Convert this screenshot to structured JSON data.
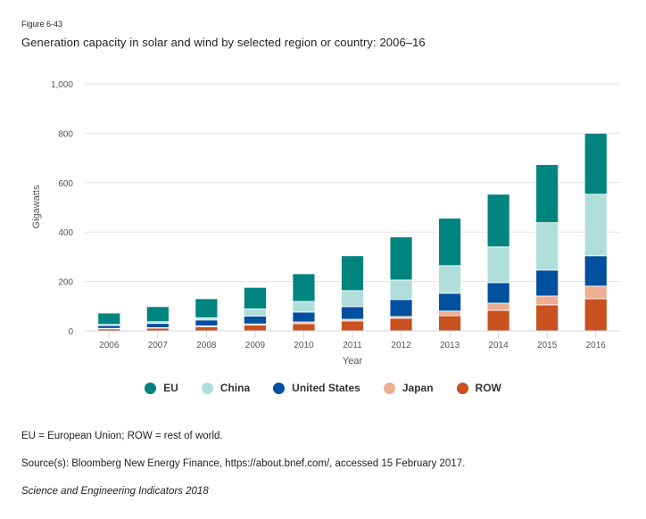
{
  "figure_label": "Figure 6-43",
  "title": "Generation capacity in solar and wind by selected region or country: 2006–16",
  "notes": {
    "abbreviations": "EU = European Union; ROW = rest of world.",
    "source": "Source(s): Bloomberg New Energy Finance, https://about.bnef.com/, accessed 15 February 2017.",
    "publication": "Science and Engineering Indicators 2018"
  },
  "chart_data": {
    "type": "bar",
    "stacked": true,
    "title": "Generation capacity in solar and wind by selected region or country: 2006–16",
    "xlabel": "Year",
    "ylabel": "Gigawatts",
    "ylim": [
      0,
      1000
    ],
    "yticks": [
      0,
      200,
      400,
      600,
      800,
      1000
    ],
    "ytick_labels": [
      "0",
      "200",
      "400",
      "600",
      "800",
      "1,000"
    ],
    "grid": true,
    "legend_position": "bottom",
    "categories": [
      "2006",
      "2007",
      "2008",
      "2009",
      "2010",
      "2011",
      "2012",
      "2013",
      "2014",
      "2015",
      "2016"
    ],
    "series": [
      {
        "name": "ROW",
        "color": "#c8511f",
        "values": [
          8,
          11,
          17,
          24,
          29,
          40,
          51,
          61,
          83,
          105,
          130
        ]
      },
      {
        "name": "Japan",
        "color": "#eeae92",
        "values": [
          2,
          2,
          3,
          4,
          7,
          7,
          7,
          19,
          29,
          36,
          51
        ]
      },
      {
        "name": "United States",
        "color": "#0050a0",
        "values": [
          12,
          17,
          24,
          32,
          40,
          51,
          69,
          72,
          83,
          105,
          123
        ]
      },
      {
        "name": "China",
        "color": "#b0dedb",
        "values": [
          4,
          7,
          9,
          29,
          43,
          65,
          79,
          112,
          145,
          192,
          249
        ]
      },
      {
        "name": "EU",
        "color": "#00847f",
        "values": [
          46,
          61,
          77,
          87,
          112,
          141,
          174,
          192,
          213,
          235,
          247
        ]
      }
    ],
    "legend_order": [
      "EU",
      "China",
      "United States",
      "Japan",
      "ROW"
    ]
  }
}
